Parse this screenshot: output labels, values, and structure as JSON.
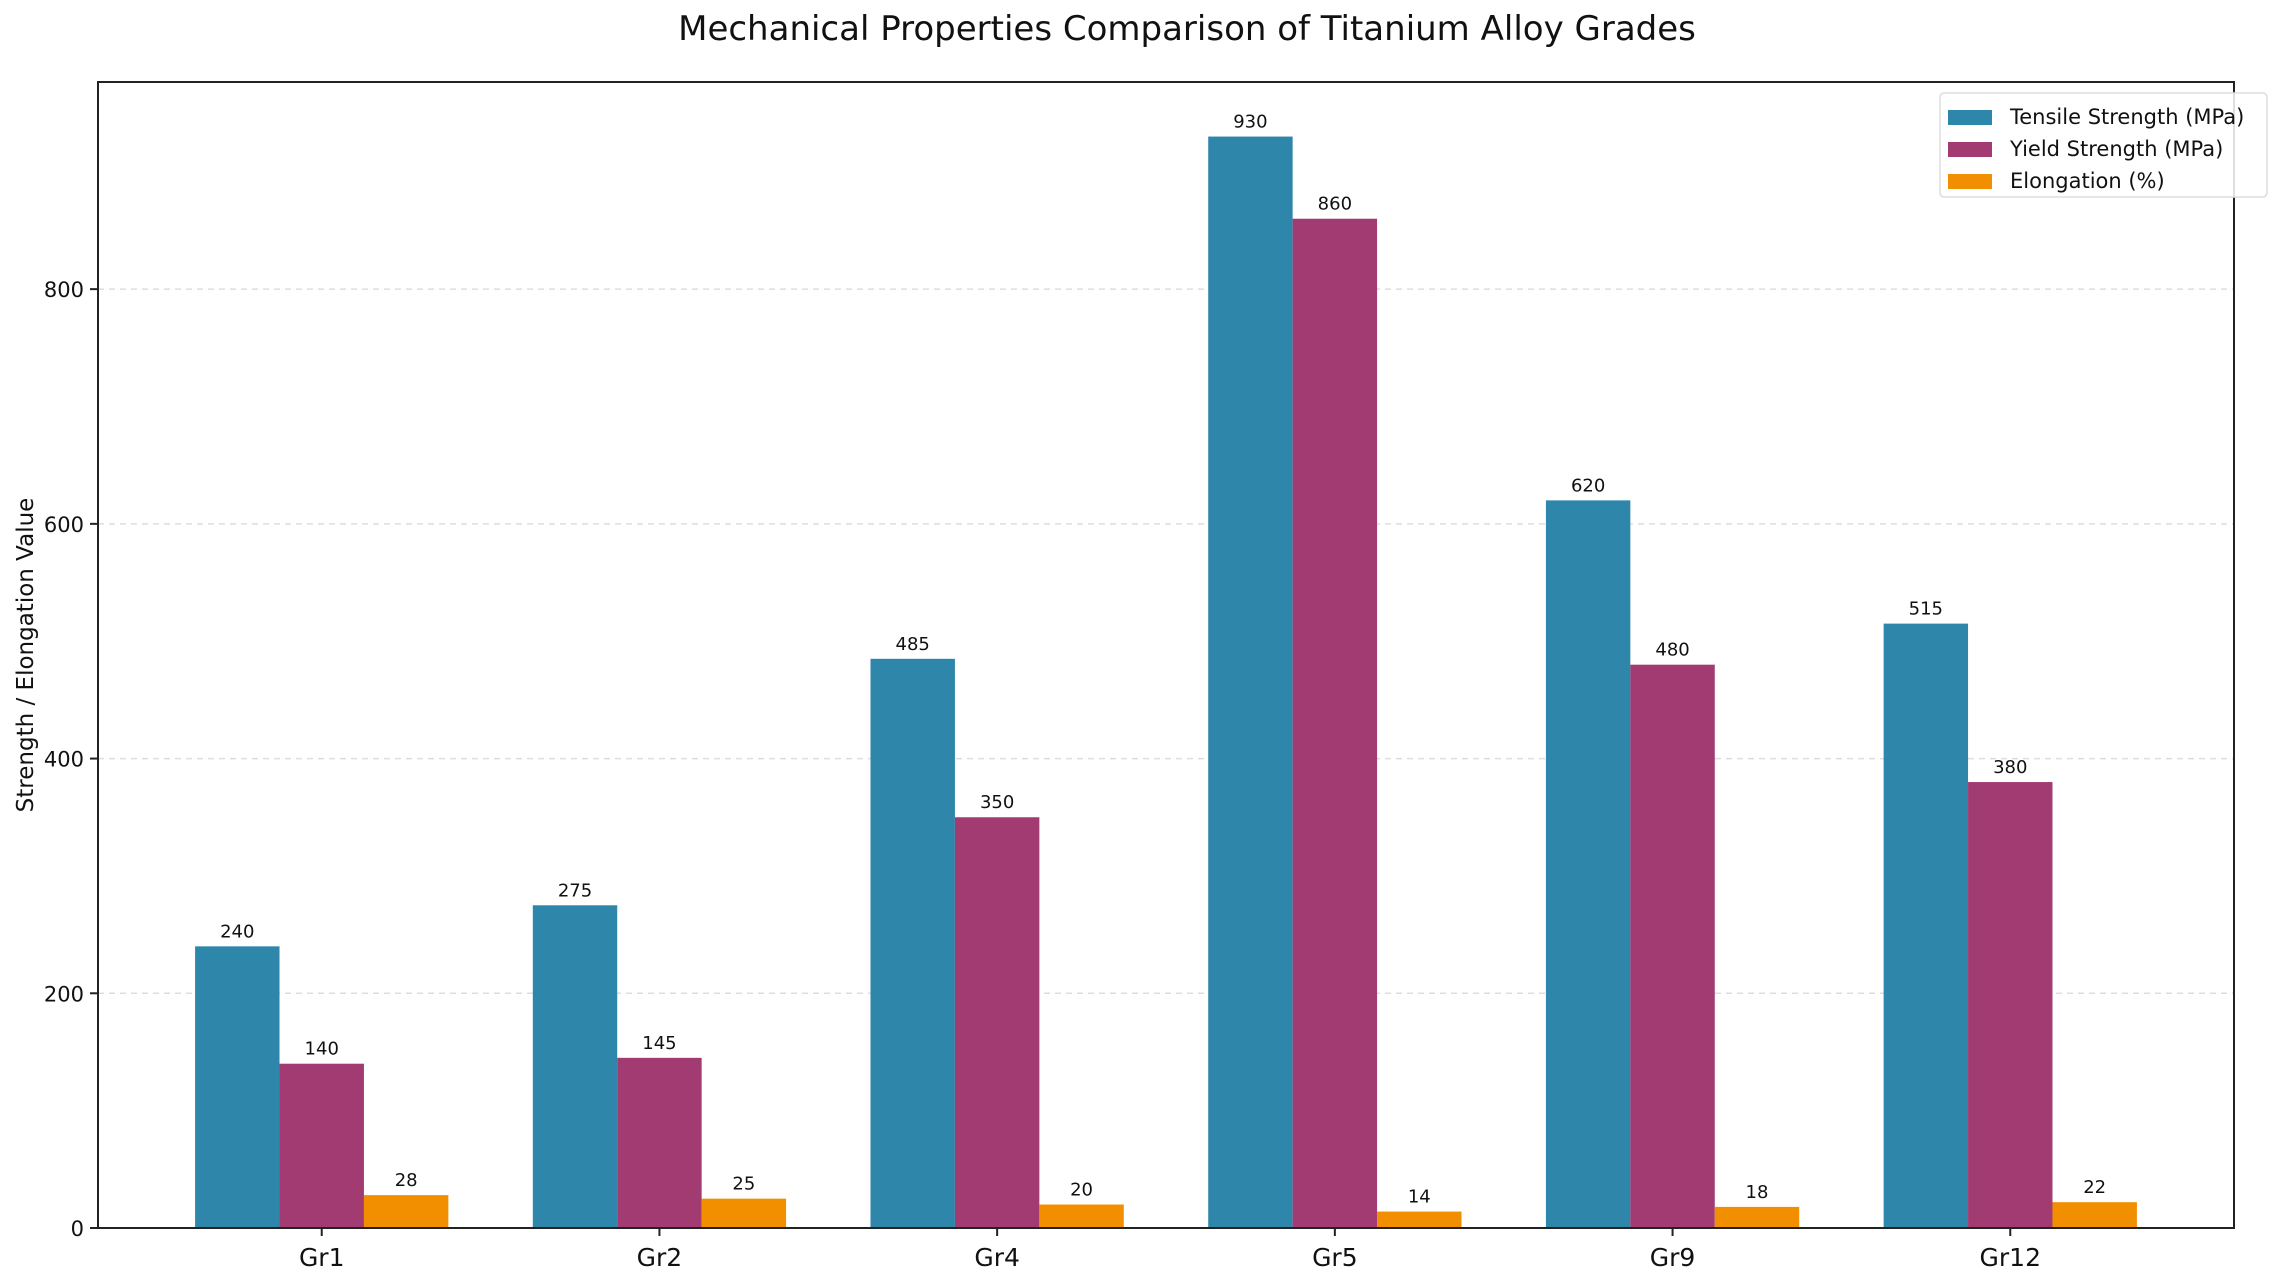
{
  "chart_data": {
    "type": "bar",
    "title": "Mechanical Properties Comparison of Titanium Alloy Grades",
    "xlabel": "",
    "ylabel": "Strength / Elongation Value",
    "categories": [
      "Gr1",
      "Gr2",
      "Gr4",
      "Gr5",
      "Gr9",
      "Gr12"
    ],
    "series": [
      {
        "name": "Tensile Strength (MPa)",
        "color": "#2E86AB",
        "values": [
          240,
          275,
          485,
          930,
          620,
          515
        ]
      },
      {
        "name": "Yield Strength (MPa)",
        "color": "#A23B72",
        "values": [
          140,
          145,
          350,
          860,
          480,
          380
        ]
      },
      {
        "name": "Elongation (%)",
        "color": "#F18F01",
        "values": [
          28,
          25,
          20,
          14,
          18,
          22
        ]
      }
    ],
    "ylim": [
      0,
      976.5
    ],
    "yticks": [
      0,
      200,
      400,
      600,
      800
    ],
    "grid": "y-dashed",
    "legend": "top-right",
    "data_labels": true
  }
}
